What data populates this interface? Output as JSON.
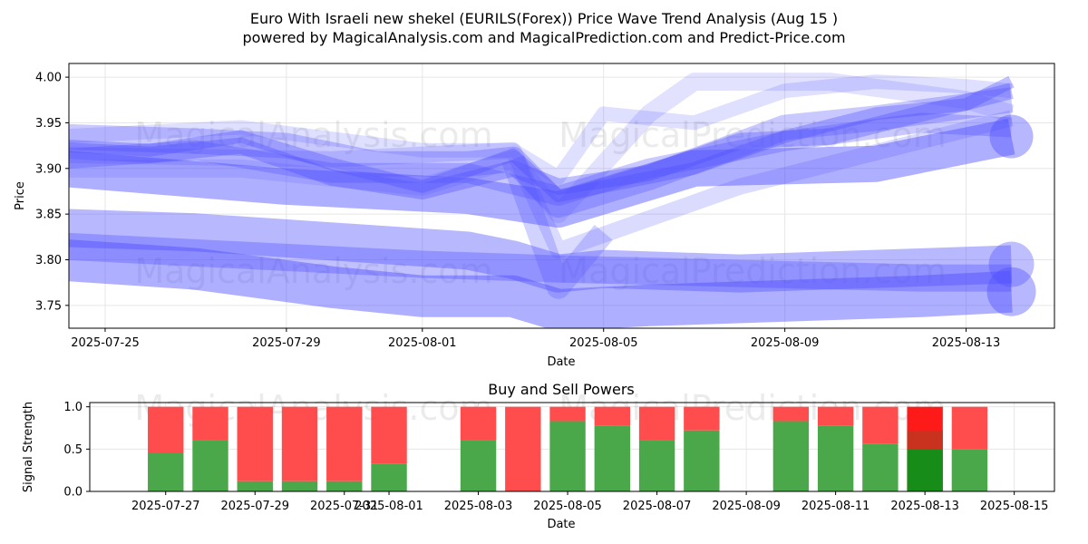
{
  "title_line1": "Euro With Israeli new shekel (EURILS(Forex)) Price Wave Trend Analysis (Aug 15 )",
  "title_line2": "powered by MagicalAnalysis.com and MagicalPrediction.com and Predict-Price.com",
  "watermarks": [
    "MagicalAnalysis.com",
    "MagicalPrediction.com"
  ],
  "colors": {
    "wave": "#4d4dff",
    "buy": "#4aa84a",
    "sell": "#ff4d4d",
    "buy_strong": "#188c18",
    "sell_strong": "#ff1a1a",
    "mixed": "#c8321e"
  },
  "chart_data": [
    {
      "type": "line",
      "title": "",
      "xlabel": "Date",
      "ylabel": "Price",
      "ylim": [
        3.725,
        4.015
      ],
      "xlim": [
        "2025-07-24",
        "2025-08-14"
      ],
      "x_ticks": [
        "2025-07-25",
        "2025-07-29",
        "2025-08-01",
        "2025-08-05",
        "2025-08-09",
        "2025-08-13"
      ],
      "y_ticks": [
        3.75,
        3.8,
        3.85,
        3.9,
        3.95,
        4.0
      ],
      "grid": true,
      "series": [
        {
          "x": [
            "2025-07-24",
            "2025-07-27",
            "2025-07-29",
            "2025-07-31",
            "2025-08-02",
            "2025-08-03",
            "2025-08-04",
            "2025-08-06",
            "2025-08-09",
            "2025-08-11",
            "2025-08-14"
          ],
          "values": [
            3.935,
            3.93,
            3.925,
            3.905,
            3.905,
            3.91,
            3.86,
            3.89,
            3.945,
            3.955,
            3.975
          ],
          "width": 28,
          "opacity": 0.3
        },
        {
          "x": [
            "2025-07-24",
            "2025-07-26",
            "2025-07-28",
            "2025-07-30",
            "2025-08-01",
            "2025-08-03",
            "2025-08-04",
            "2025-08-06",
            "2025-08-08",
            "2025-08-10",
            "2025-08-12",
            "2025-08-14"
          ],
          "values": [
            3.92,
            3.915,
            3.925,
            3.89,
            3.875,
            3.9,
            3.88,
            3.895,
            3.93,
            3.935,
            3.96,
            3.985
          ],
          "width": 18,
          "opacity": 0.35
        },
        {
          "x": [
            "2025-07-24",
            "2025-07-26",
            "2025-07-28",
            "2025-07-30",
            "2025-08-01",
            "2025-08-03",
            "2025-08-04",
            "2025-08-05",
            "2025-08-07",
            "2025-08-09",
            "2025-08-11",
            "2025-08-13",
            "2025-08-14"
          ],
          "values": [
            3.925,
            3.92,
            3.935,
            3.905,
            3.88,
            3.915,
            3.87,
            3.88,
            3.9,
            3.935,
            3.96,
            3.97,
            3.995
          ],
          "width": 14,
          "opacity": 0.35
        },
        {
          "x": [
            "2025-07-24",
            "2025-07-27",
            "2025-07-30",
            "2025-08-02",
            "2025-08-04",
            "2025-08-06",
            "2025-08-09",
            "2025-08-12",
            "2025-08-14"
          ],
          "values": [
            3.91,
            3.92,
            3.895,
            3.895,
            3.87,
            3.9,
            3.93,
            3.95,
            3.945
          ],
          "width": 22,
          "opacity": 0.3
        },
        {
          "x": [
            "2025-07-24",
            "2025-07-28",
            "2025-08-01",
            "2025-08-03",
            "2025-08-04",
            "2025-08-05",
            "2025-08-07",
            "2025-08-09",
            "2025-08-11",
            "2025-08-13",
            "2025-08-14"
          ],
          "values": [
            3.935,
            3.945,
            3.92,
            3.92,
            3.89,
            3.96,
            3.95,
            3.985,
            3.995,
            3.99,
            3.985
          ],
          "width": 16,
          "opacity": 0.18
        },
        {
          "x": [
            "2025-07-24",
            "2025-07-28",
            "2025-08-01",
            "2025-08-03",
            "2025-08-04",
            "2025-08-06",
            "2025-08-07",
            "2025-08-10",
            "2025-08-13",
            "2025-08-14"
          ],
          "values": [
            3.9,
            3.9,
            3.88,
            3.91,
            3.85,
            3.96,
            3.995,
            3.995,
            3.975,
            3.96
          ],
          "width": 20,
          "opacity": 0.16
        },
        {
          "x": [
            "2025-07-24",
            "2025-07-29",
            "2025-08-02",
            "2025-08-04",
            "2025-08-07",
            "2025-08-11",
            "2025-08-14"
          ],
          "values": [
            3.9,
            3.88,
            3.87,
            3.855,
            3.9,
            3.905,
            3.935
          ],
          "width": 40,
          "opacity": 0.45,
          "endcap": true
        },
        {
          "x": [
            "2025-07-24",
            "2025-07-30",
            "2025-08-03",
            "2025-08-04",
            "2025-08-08",
            "2025-08-14"
          ],
          "values": [
            3.915,
            3.91,
            3.92,
            3.81,
            3.88,
            3.955
          ],
          "width": 18,
          "opacity": 0.2
        },
        {
          "x": [
            "2025-07-24",
            "2025-07-27",
            "2025-07-30",
            "2025-08-02",
            "2025-08-03",
            "2025-08-04",
            "2025-08-05",
            "2025-08-08",
            "2025-08-11",
            "2025-08-14"
          ],
          "values": [
            3.835,
            3.83,
            3.82,
            3.81,
            3.8,
            3.785,
            3.79,
            3.785,
            3.79,
            3.795
          ],
          "width": 42,
          "opacity": 0.4,
          "endcap": true
        },
        {
          "x": [
            "2025-07-24",
            "2025-07-27",
            "2025-07-30",
            "2025-08-01",
            "2025-08-03",
            "2025-08-04",
            "2025-08-06",
            "2025-08-09",
            "2025-08-12",
            "2025-08-14"
          ],
          "values": [
            3.8,
            3.79,
            3.77,
            3.76,
            3.76,
            3.745,
            3.75,
            3.755,
            3.76,
            3.765
          ],
          "width": 46,
          "opacity": 0.45,
          "endcap": true
        },
        {
          "x": [
            "2025-07-24",
            "2025-07-28",
            "2025-08-01",
            "2025-08-04",
            "2025-08-08",
            "2025-08-12",
            "2025-08-14"
          ],
          "values": [
            3.815,
            3.805,
            3.795,
            3.79,
            3.785,
            3.78,
            3.78
          ],
          "width": 30,
          "opacity": 0.35
        },
        {
          "x": [
            "2025-08-03",
            "2025-08-04",
            "2025-08-05"
          ],
          "values": [
            3.91,
            3.77,
            3.83
          ],
          "width": 26,
          "opacity": 0.25
        }
      ]
    },
    {
      "type": "bar",
      "title": "Buy and Sell Powers",
      "xlabel": "Date",
      "ylabel": "Signal Strength",
      "ylim": [
        0,
        1.05
      ],
      "xlim": [
        "2025-07-25.3",
        "2025-08-15.9"
      ],
      "x_ticks": [
        "2025-07-27",
        "2025-07-29",
        "2025-07-31",
        "2025-08-01",
        "2025-08-03",
        "2025-08-05",
        "2025-08-07",
        "2025-08-09",
        "2025-08-11",
        "2025-08-13",
        "2025-08-15"
      ],
      "y_ticks": [
        0.0,
        0.5,
        1.0
      ],
      "grid": true,
      "bars": [
        {
          "date": "2025-07-27",
          "buy": 0.45,
          "sell": 0.55
        },
        {
          "date": "2025-07-28",
          "buy": 0.61,
          "sell": 0.39
        },
        {
          "date": "2025-07-29",
          "buy": 0.12,
          "sell": 0.88
        },
        {
          "date": "2025-07-30",
          "buy": 0.12,
          "sell": 0.88
        },
        {
          "date": "2025-07-31",
          "buy": 0.12,
          "sell": 0.88
        },
        {
          "date": "2025-08-01",
          "buy": 0.33,
          "sell": 0.67
        },
        {
          "date": "2025-08-03",
          "buy": 0.61,
          "sell": 0.39
        },
        {
          "date": "2025-08-04",
          "buy": 0.0,
          "sell": 1.0
        },
        {
          "date": "2025-08-05",
          "buy": 0.83,
          "sell": 0.17
        },
        {
          "date": "2025-08-06",
          "buy": 0.78,
          "sell": 0.22
        },
        {
          "date": "2025-08-07",
          "buy": 0.61,
          "sell": 0.39
        },
        {
          "date": "2025-08-08",
          "buy": 0.72,
          "sell": 0.28
        },
        {
          "date": "2025-08-10",
          "buy": 0.83,
          "sell": 0.17
        },
        {
          "date": "2025-08-11",
          "buy": 0.78,
          "sell": 0.22
        },
        {
          "date": "2025-08-12",
          "buy": 0.56,
          "sell": 0.44
        },
        {
          "date": "2025-08-13",
          "buy": 0.5,
          "sell": 0.5,
          "highlight": true
        },
        {
          "date": "2025-08-14",
          "buy": 0.5,
          "sell": 0.5
        }
      ]
    }
  ]
}
